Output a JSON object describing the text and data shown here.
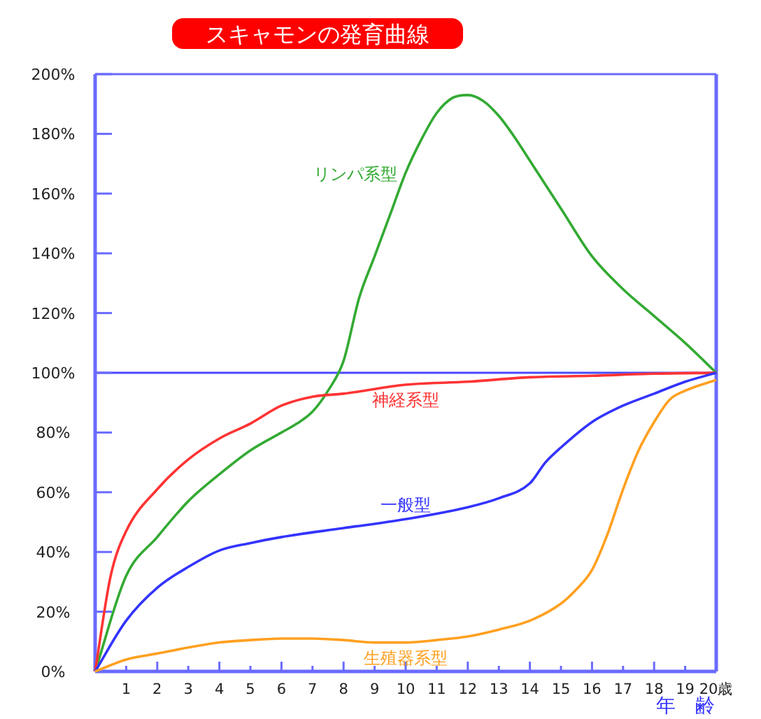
{
  "chart_data": {
    "type": "line",
    "title": "スキャモンの発育曲線",
    "xlabel": "年　齢",
    "xlim": [
      0,
      20
    ],
    "ylim": [
      0,
      200
    ],
    "xticks": [
      1,
      2,
      3,
      4,
      5,
      6,
      7,
      8,
      9,
      10,
      11,
      12,
      13,
      14,
      15,
      16,
      17,
      18,
      19,
      {
        "value": 20,
        "label": "20歳"
      }
    ],
    "yticks": [
      {
        "value": 0,
        "label": "0%"
      },
      {
        "value": 20,
        "label": "20%"
      },
      {
        "value": 40,
        "label": "40%"
      },
      {
        "value": 60,
        "label": "60%"
      },
      {
        "value": 80,
        "label": "80%"
      },
      {
        "value": 100,
        "label": "100%"
      },
      {
        "value": 120,
        "label": "120%"
      },
      {
        "value": 140,
        "label": "140%"
      },
      {
        "value": 160,
        "label": "160%"
      },
      {
        "value": 180,
        "label": "180%"
      },
      {
        "value": 200,
        "label": "200%"
      }
    ],
    "ref_lines": [
      {
        "axis": "y",
        "value": 100,
        "color": "#4a4aff"
      }
    ],
    "series": [
      {
        "name": "リンパ系型",
        "color": "#33aa33",
        "x": [
          0,
          1,
          2,
          3,
          4,
          5,
          6,
          6.5,
          7,
          7.5,
          8,
          8.5,
          9,
          9.5,
          10,
          10.5,
          11,
          11.5,
          12,
          12.5,
          13,
          13.5,
          14,
          15,
          16,
          17,
          18,
          19,
          20
        ],
        "values": [
          0,
          32,
          45,
          57,
          66,
          74,
          80,
          83,
          87,
          94,
          104,
          125,
          139,
          153,
          167,
          178,
          187,
          192,
          193,
          191,
          186,
          179,
          171,
          155,
          139,
          128,
          119,
          110,
          100
        ]
      },
      {
        "name": "神経系型",
        "color": "#ff3333",
        "x": [
          0,
          0.5,
          1,
          2,
          3,
          4,
          5,
          6,
          7,
          8,
          10,
          12,
          14,
          16,
          18,
          20
        ],
        "values": [
          0,
          32,
          47,
          61,
          71,
          78,
          83,
          89,
          92,
          93,
          96,
          97,
          98.5,
          99,
          99.7,
          100
        ]
      },
      {
        "name": "一般型",
        "color": "#3333ff",
        "x": [
          0,
          1,
          2,
          3,
          4,
          5,
          6,
          8,
          10,
          12,
          13,
          14,
          14.5,
          15,
          16,
          17,
          18,
          19,
          20
        ],
        "values": [
          0,
          17,
          28,
          35,
          40.5,
          43,
          45,
          48,
          51,
          55,
          58,
          63,
          70,
          75,
          83.5,
          89,
          93,
          97,
          100
        ]
      },
      {
        "name": "生殖器系型",
        "color": "#ffa020",
        "x": [
          0,
          1,
          2,
          3,
          4,
          5,
          6,
          7,
          8,
          9,
          10,
          11,
          12,
          13,
          14,
          15,
          15.5,
          16,
          16.5,
          17,
          17.5,
          18,
          18.5,
          19,
          20
        ],
        "values": [
          0,
          4,
          6,
          8,
          9.7,
          10.5,
          11,
          11,
          10.5,
          9.7,
          9.7,
          10.5,
          11.7,
          14,
          17,
          22.7,
          27.5,
          34,
          46,
          61,
          74,
          83.5,
          91,
          94,
          97.6
        ]
      }
    ]
  }
}
